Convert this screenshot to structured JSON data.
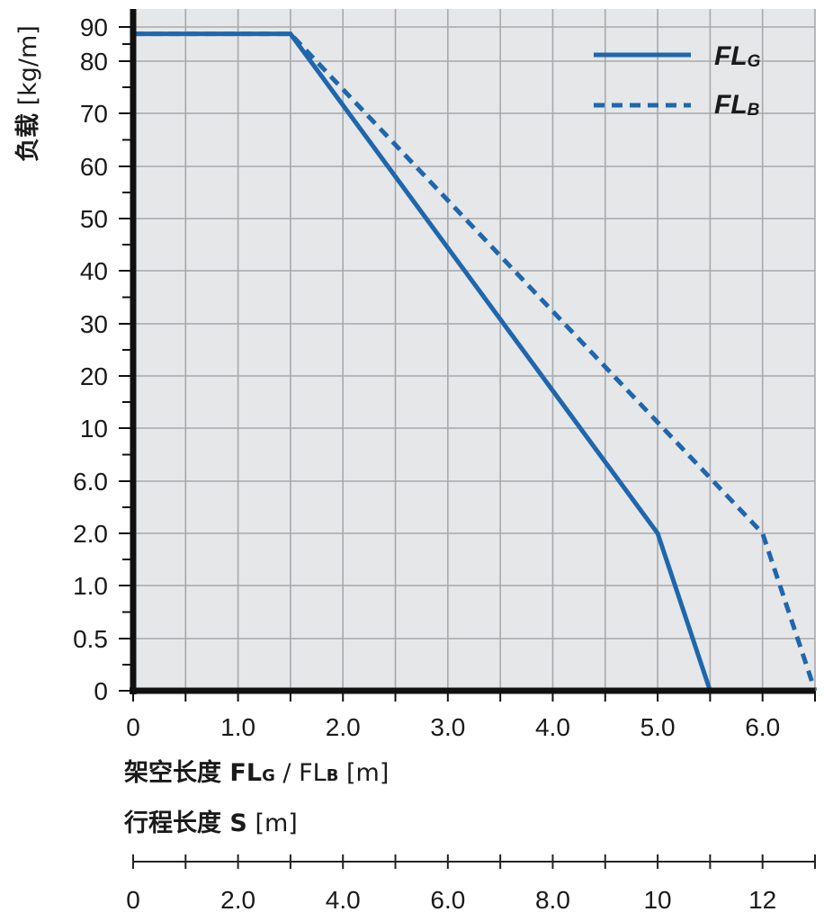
{
  "chart_data": {
    "type": "line",
    "ylabel": {
      "bold": "负载",
      "normal": " [kg/m]"
    },
    "xlabel": {
      "bold": "架空长度 FL",
      "sub1": "G",
      "mid": " / FL",
      "sub2": "B",
      "normal": " [m]"
    },
    "x2label": {
      "bold": "行程长度 S",
      "normal": " [m]"
    },
    "xlim": [
      0,
      6.5
    ],
    "x_ticks": [
      "0",
      "1.0",
      "2.0",
      "3.0",
      "4.0",
      "5.0",
      "6.0"
    ],
    "x_tick_values": [
      0,
      1,
      2,
      3,
      4,
      5,
      6
    ],
    "y_scale": "piecewise (non-linear)",
    "y_ticks": [
      "0",
      "0.5",
      "1.0",
      "2.0",
      "6.0",
      "10",
      "20",
      "30",
      "40",
      "50",
      "60",
      "70",
      "80",
      "90"
    ],
    "x2_ticks": [
      "0",
      "2.0",
      "4.0",
      "6.0",
      "8.0",
      "10",
      "12"
    ],
    "x2_tick_values": [
      0,
      2,
      4,
      6,
      8,
      10,
      12
    ],
    "x2lim": [
      0,
      13
    ],
    "grid": true,
    "legend_position": "top-right",
    "series": [
      {
        "name": "FLG",
        "name_main": "FL",
        "name_sub": "G",
        "style": "solid",
        "x": [
          0,
          1.5,
          5.0,
          5.5
        ],
        "y": [
          88,
          88,
          2.0,
          0
        ]
      },
      {
        "name": "FLB",
        "name_main": "FL",
        "name_sub": "B",
        "style": "dashed",
        "x": [
          0,
          1.5,
          6.0,
          6.5
        ],
        "y": [
          88,
          88,
          2.0,
          0
        ]
      }
    ],
    "colors": {
      "line": "#1f67ad",
      "plot_bg": "#e6e7e8",
      "grid": "#a7a9ac",
      "axis": "#111111"
    }
  }
}
